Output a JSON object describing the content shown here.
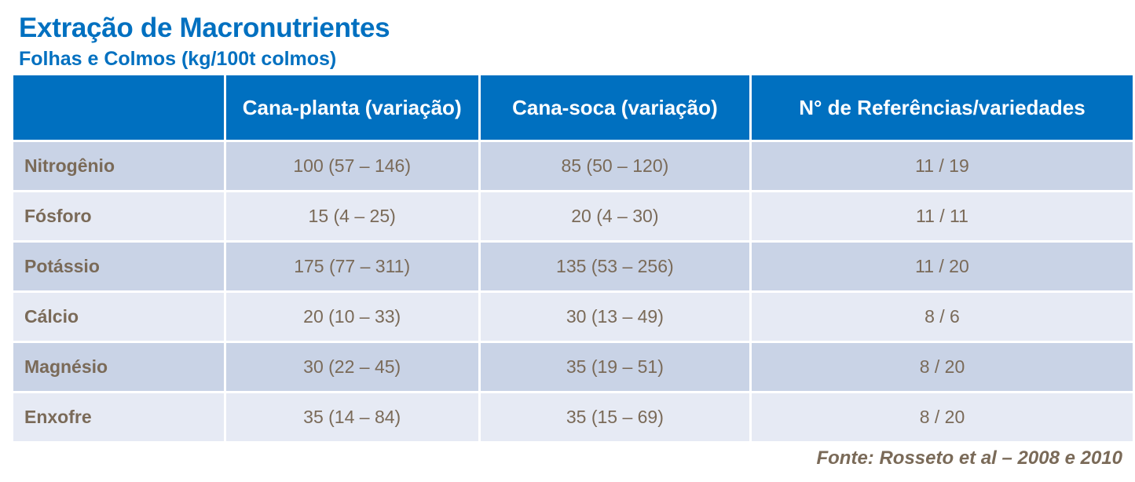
{
  "title": "Extração de Macronutrientes",
  "subtitle": "Folhas e Colmos (kg/100t colmos)",
  "table": {
    "headers": [
      "",
      "Cana-planta (variação)",
      "Cana-soca (variação)",
      "N° de Referências/variedades"
    ],
    "rows": [
      [
        "Nitrogênio",
        "100 (57 – 146)",
        "85 (50 – 120)",
        "11 / 19"
      ],
      [
        "Fósforo",
        "15 (4 – 25)",
        "20 (4 – 30)",
        "11 / 11"
      ],
      [
        "Potássio",
        "175 (77 – 311)",
        "135 (53 – 256)",
        "11 / 20"
      ],
      [
        "Cálcio",
        "20 (10 – 33)",
        "30 (13 – 49)",
        "8 / 6"
      ],
      [
        "Magnésio",
        "30 (22 – 45)",
        "35 (19 – 51)",
        "8 / 20"
      ],
      [
        "Enxofre",
        "35 (14 – 84)",
        "35 (15 – 69)",
        "8 / 20"
      ]
    ]
  },
  "source": "Fonte: Rosseto et al – 2008 e 2010",
  "colors": {
    "accent": "#0070c0",
    "row_dark": "#c9d3e6",
    "row_light": "#e6eaf4",
    "text": "#7a6a58"
  }
}
